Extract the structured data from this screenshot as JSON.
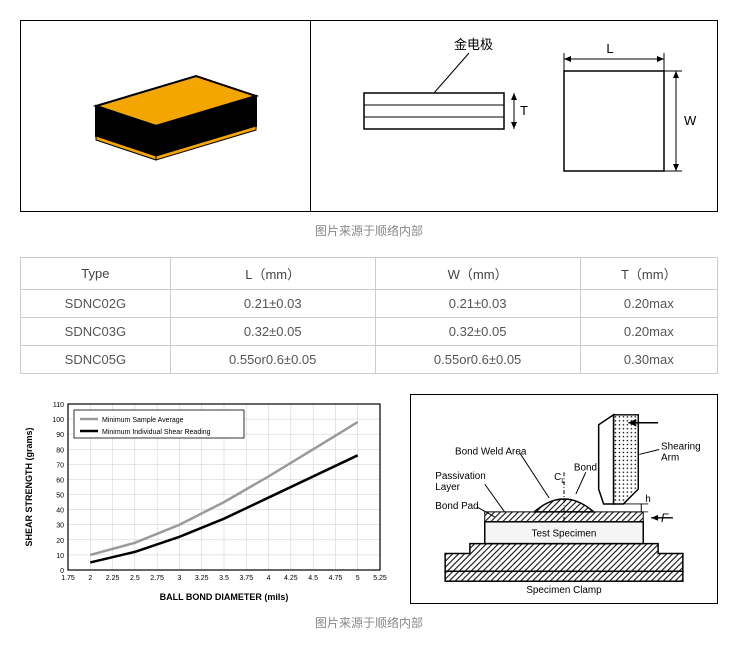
{
  "top_diagram": {
    "chip_3d": {
      "top_color": "#f4a600",
      "side_color": "#000000",
      "edge_color": "#000000"
    },
    "label_electrode": "金电极",
    "dim_labels": {
      "L": "L",
      "W": "W",
      "T": "T"
    },
    "line_color": "#000000"
  },
  "caption1": "图片来源于顺络内部",
  "caption2": "图片来源于顺络内部",
  "spec_table": {
    "headers": [
      "Type",
      "L（mm）",
      "W（mm）",
      "T（mm）"
    ],
    "rows": [
      [
        "SDNC02G",
        "0.21±0.03",
        "0.21±0.03",
        "0.20max"
      ],
      [
        "SDNC03G",
        "0.32±0.05",
        "0.32±0.05",
        "0.20max"
      ],
      [
        "SDNC05G",
        "0.55or0.6±0.05",
        "0.55or0.6±0.05",
        "0.30max"
      ]
    ]
  },
  "chart": {
    "type": "line",
    "title": "",
    "ylabel": "SHEAR STRENGTH (grams)",
    "xlabel": "BALL BOND DIAMETER (mils)",
    "label_fontsize": 9,
    "axis_fontsize": 7,
    "xlim": [
      1.75,
      5.25
    ],
    "ylim": [
      0,
      110
    ],
    "xticks": [
      1.75,
      2.0,
      2.25,
      2.5,
      2.75,
      3.0,
      3.25,
      3.5,
      3.75,
      4.0,
      4.25,
      4.5,
      4.75,
      5.0,
      5.25
    ],
    "yticks": [
      0,
      10,
      20,
      30,
      40,
      50,
      60,
      70,
      80,
      90,
      100,
      110
    ],
    "grid_color": "#cccccc",
    "background_color": "#ffffff",
    "axis_color": "#000000",
    "legend": {
      "position": "top-left",
      "items": [
        {
          "label": "Minimum Sample Average",
          "color": "#9a9a9a",
          "width": 2.5
        },
        {
          "label": "Minimum Individual Shear Reading",
          "color": "#000000",
          "width": 2.5
        }
      ]
    },
    "series": [
      {
        "name": "Minimum Sample Average",
        "color": "#9a9a9a",
        "width": 2.5,
        "x": [
          2.0,
          2.5,
          3.0,
          3.5,
          4.0,
          4.5,
          5.0
        ],
        "y": [
          10,
          18,
          30,
          45,
          62,
          80,
          98
        ]
      },
      {
        "name": "Minimum Individual Shear Reading",
        "color": "#000000",
        "width": 2.5,
        "x": [
          2.0,
          2.5,
          3.0,
          3.5,
          4.0,
          4.5,
          5.0
        ],
        "y": [
          5,
          12,
          22,
          34,
          48,
          62,
          76
        ]
      }
    ]
  },
  "shear_diagram": {
    "labels": {
      "bond_weld_area": "Bond Weld Area",
      "passivation_layer": "Passivation\nLayer",
      "bond_pad": "Bond Pad",
      "bond": "Bond",
      "shearing_arm": "Shearing\nArm",
      "test_specimen": "Test Specimen",
      "specimen_clamp": "Specimen Clamp",
      "cl": "C",
      "cl_sub": "L",
      "h": "h",
      "F": "F"
    },
    "line_color": "#000000",
    "hatch_color": "#000000",
    "fontsize": 9
  }
}
